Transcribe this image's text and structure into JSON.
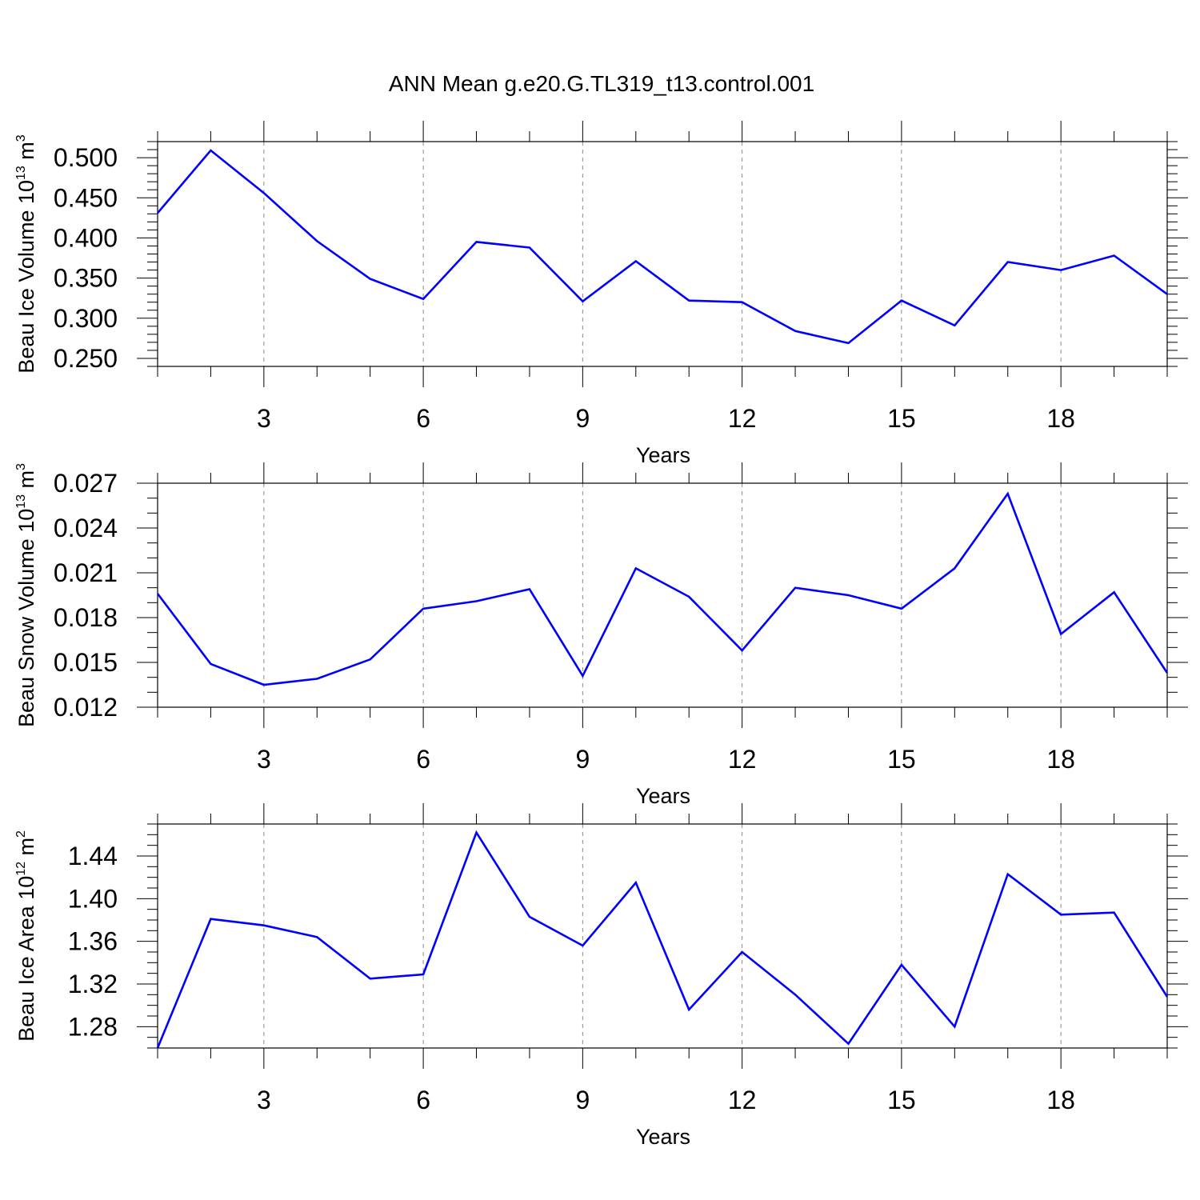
{
  "title": "ANN Mean g.e20.G.TL319_t13.control.001",
  "line_color": "#0000ff",
  "chart_data": [
    {
      "type": "line",
      "title": "",
      "xlabel": "Years",
      "ylabel": {
        "base": "Beau Ice Volume 10",
        "exp": "13",
        "unit": " m",
        "unit_exp": "3"
      },
      "x": [
        1,
        2,
        3,
        4,
        5,
        6,
        7,
        8,
        9,
        10,
        11,
        12,
        13,
        14,
        15,
        16,
        17,
        18,
        19,
        20
      ],
      "series": [
        {
          "values": [
            0.431,
            0.509,
            0.456,
            0.396,
            0.349,
            0.324,
            0.395,
            0.388,
            0.321,
            0.371,
            0.322,
            0.32,
            0.284,
            0.269,
            0.322,
            0.291,
            0.37,
            0.36,
            0.378,
            0.33
          ]
        }
      ],
      "xlim": [
        1,
        20
      ],
      "ylim": [
        0.24,
        0.52
      ],
      "xticks": [
        "3",
        "6",
        "9",
        "12",
        "15",
        "18"
      ],
      "xtick_values": [
        3,
        6,
        9,
        12,
        15,
        18
      ],
      "yticks": [
        "0.250",
        "0.300",
        "0.350",
        "0.400",
        "0.450",
        "0.500"
      ],
      "ytick_values": [
        0.25,
        0.3,
        0.35,
        0.4,
        0.45,
        0.5
      ],
      "ytick_minor_step": 0.01,
      "grid": "x-dashed"
    },
    {
      "type": "line",
      "title": "",
      "xlabel": "Years",
      "ylabel": {
        "base": "Beau Snow Volume 10",
        "exp": "13",
        "unit": " m",
        "unit_exp": "3"
      },
      "x": [
        1,
        2,
        3,
        4,
        5,
        6,
        7,
        8,
        9,
        10,
        11,
        12,
        13,
        14,
        15,
        16,
        17,
        18,
        19,
        20
      ],
      "series": [
        {
          "values": [
            0.0196,
            0.0149,
            0.0135,
            0.0139,
            0.0152,
            0.0186,
            0.0191,
            0.0199,
            0.0141,
            0.0213,
            0.0194,
            0.0158,
            0.02,
            0.0195,
            0.0186,
            0.0213,
            0.0263,
            0.0169,
            0.0197,
            0.0143
          ]
        }
      ],
      "xlim": [
        1,
        20
      ],
      "ylim": [
        0.012,
        0.027
      ],
      "xticks": [
        "3",
        "6",
        "9",
        "12",
        "15",
        "18"
      ],
      "xtick_values": [
        3,
        6,
        9,
        12,
        15,
        18
      ],
      "yticks": [
        "0.012",
        "0.015",
        "0.018",
        "0.021",
        "0.024",
        "0.027"
      ],
      "ytick_values": [
        0.012,
        0.015,
        0.018,
        0.021,
        0.024,
        0.027
      ],
      "ytick_minor_step": 0.001,
      "grid": "x-dashed"
    },
    {
      "type": "line",
      "title": "",
      "xlabel": "Years",
      "ylabel": {
        "base": "Beau Ice Area 10",
        "exp": "12",
        "unit": " m",
        "unit_exp": "2"
      },
      "x": [
        1,
        2,
        3,
        4,
        5,
        6,
        7,
        8,
        9,
        10,
        11,
        12,
        13,
        14,
        15,
        16,
        17,
        18,
        19,
        20
      ],
      "series": [
        {
          "values": [
            1.26,
            1.381,
            1.375,
            1.364,
            1.325,
            1.329,
            1.462,
            1.383,
            1.356,
            1.415,
            1.296,
            1.35,
            1.31,
            1.264,
            1.338,
            1.28,
            1.423,
            1.385,
            1.387,
            1.308
          ]
        }
      ],
      "xlim": [
        1,
        20
      ],
      "ylim": [
        1.26,
        1.47
      ],
      "xticks": [
        "3",
        "6",
        "9",
        "12",
        "15",
        "18"
      ],
      "xtick_values": [
        3,
        6,
        9,
        12,
        15,
        18
      ],
      "yticks": [
        "1.28",
        "1.32",
        "1.36",
        "1.40",
        "1.44"
      ],
      "ytick_values": [
        1.28,
        1.32,
        1.36,
        1.4,
        1.44
      ],
      "ytick_minor_step": 0.01,
      "grid": "x-dashed"
    }
  ]
}
